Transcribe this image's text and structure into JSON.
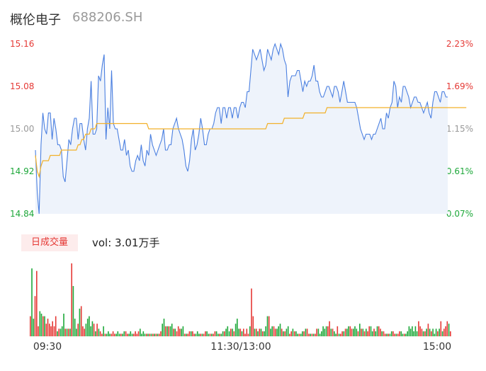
{
  "header": {
    "name": "概伦电子",
    "code": "688206.SH"
  },
  "volume_panel": {
    "tab_label": "日成交量",
    "vol_text": "vol: 3.01万手"
  },
  "colors": {
    "price": "#4a7fe0",
    "avg": "#f2b12a",
    "up": "#e53935",
    "down": "#1ea83a",
    "grid_text_neutral": "#999999"
  },
  "chart_data": [
    {
      "type": "line",
      "title": "",
      "y_ticks_left": [
        "15.16",
        "15.08",
        "15.00",
        "14.92",
        "14.84"
      ],
      "y_ticks_right": [
        "2.23%",
        "1.69%",
        "1.15%",
        "0.61%",
        "0.07%"
      ],
      "ylim": [
        14.84,
        15.16
      ],
      "x_labels": [
        "09:30",
        "11:30/13:00",
        "15:00"
      ],
      "series": [
        {
          "values": [
            14.96,
            14.88,
            14.84,
            14.97,
            15.03,
            15.0,
            14.99,
            15.03,
            15.03,
            14.98,
            15.02,
            15.0,
            14.97,
            14.97,
            14.96,
            14.91,
            14.9,
            14.94,
            14.98,
            14.97,
            15.0,
            15.02,
            15.02,
            14.98,
            15.01,
            15.01,
            14.98,
            14.96,
            15.0,
            15.02,
            15.09,
            14.99,
            14.99,
            15.0,
            15.1,
            15.09,
            15.12,
            15.14,
            14.98,
            15.04,
            15.0,
            15.11,
            15.01,
            15.0,
            15.0,
            14.98,
            14.96,
            14.96,
            14.98,
            14.95,
            14.96,
            14.93,
            14.92,
            14.92,
            14.94,
            14.95,
            14.94,
            14.97,
            14.94,
            14.93,
            14.96,
            14.95,
            14.99,
            14.97,
            14.96,
            14.95,
            14.96,
            14.97,
            14.98,
            15.0,
            14.96,
            14.96,
            14.97,
            14.97,
            15.0,
            15.01,
            15.02,
            15.0,
            14.99,
            14.98,
            14.96,
            14.93,
            14.92,
            14.94,
            14.98,
            15.0,
            14.96,
            14.97,
            14.99,
            15.02,
            15.0,
            14.97,
            14.97,
            14.99,
            15.0,
            15.0,
            15.01,
            15.03,
            15.04,
            15.04,
            15.01,
            15.04,
            15.04,
            15.02,
            15.04,
            15.04,
            15.02,
            15.04,
            15.04,
            15.02,
            15.04,
            15.05,
            15.05,
            15.04,
            15.07,
            15.07,
            15.11,
            15.15,
            15.14,
            15.13,
            15.14,
            15.15,
            15.13,
            15.11,
            15.12,
            15.15,
            15.14,
            15.13,
            15.15,
            15.16,
            15.15,
            15.14,
            15.16,
            15.15,
            15.13,
            15.12,
            15.06,
            15.09,
            15.1,
            15.1,
            15.1,
            15.11,
            15.11,
            15.09,
            15.07,
            15.09,
            15.08,
            15.09,
            15.09,
            15.1,
            15.12,
            15.09,
            15.09,
            15.07,
            15.06,
            15.06,
            15.07,
            15.08,
            15.08,
            15.07,
            15.06,
            15.08,
            15.08,
            15.07,
            15.05,
            15.07,
            15.09,
            15.07,
            15.05,
            15.05,
            15.05,
            15.05,
            15.05,
            15.04,
            15.02,
            15.0,
            14.99,
            14.98,
            14.99,
            14.99,
            14.99,
            14.98,
            14.99,
            14.99,
            15.0,
            15.01,
            15.02,
            15.0,
            15.0,
            15.03,
            15.02,
            15.04,
            15.05,
            15.09,
            15.08,
            15.04,
            15.06,
            15.05,
            15.08,
            15.08,
            15.07,
            15.06,
            15.04,
            15.05,
            15.06,
            15.06,
            15.05,
            15.05,
            15.04,
            15.03,
            15.04,
            15.05,
            15.03,
            15.02,
            15.05,
            15.07,
            15.07,
            15.06,
            15.05,
            15.07,
            15.07,
            15.06,
            15.06
          ]
        },
        {
          "values": [
            14.95,
            14.92,
            14.91,
            14.93,
            14.94,
            14.94,
            14.94,
            14.94,
            14.95,
            14.95,
            14.95,
            14.95,
            14.95,
            14.95,
            14.96,
            14.96,
            14.96,
            14.96,
            14.96,
            14.96,
            14.96,
            14.96,
            14.96,
            14.97,
            14.97,
            14.98,
            14.98,
            14.99,
            14.99,
            14.99,
            15.0,
            15.0,
            15.0,
            15.01,
            15.01,
            15.01,
            15.01,
            15.01,
            15.01,
            15.01,
            15.01,
            15.01,
            15.01,
            15.01,
            15.01,
            15.01,
            15.01,
            15.01,
            15.01,
            15.01,
            15.01,
            15.01,
            15.01,
            15.01,
            15.01,
            15.01,
            15.01,
            15.01,
            15.01,
            15.01,
            15.01,
            15.0,
            15.0,
            15.0,
            15.0,
            15.0,
            15.0,
            15.0,
            15.0,
            15.0,
            15.0,
            15.0,
            15.0,
            15.0,
            15.0,
            15.0,
            15.0,
            15.0,
            15.0,
            15.0,
            15.0,
            15.0,
            15.0,
            15.0,
            15.0,
            15.0,
            15.0,
            15.0,
            15.0,
            15.0,
            15.0,
            15.0,
            15.0,
            15.0,
            15.0,
            15.0,
            15.0,
            15.0,
            15.0,
            15.0,
            15.0,
            15.0,
            15.0,
            15.0,
            15.0,
            15.0,
            15.0,
            15.0,
            15.0,
            15.0,
            15.0,
            15.0,
            15.0,
            15.0,
            15.0,
            15.0,
            15.0,
            15.0,
            15.0,
            15.0,
            15.0,
            15.0,
            15.0,
            15.0,
            15.0,
            15.01,
            15.01,
            15.01,
            15.01,
            15.01,
            15.01,
            15.01,
            15.01,
            15.01,
            15.02,
            15.02,
            15.02,
            15.02,
            15.02,
            15.02,
            15.02,
            15.02,
            15.02,
            15.02,
            15.02,
            15.03,
            15.03,
            15.03,
            15.03,
            15.03,
            15.03,
            15.03,
            15.03,
            15.03,
            15.03,
            15.03,
            15.03,
            15.04,
            15.04,
            15.04,
            15.04,
            15.04,
            15.04,
            15.04,
            15.04,
            15.04,
            15.04,
            15.04,
            15.04,
            15.04,
            15.04,
            15.04,
            15.04,
            15.04,
            15.04,
            15.04,
            15.04,
            15.04,
            15.04,
            15.04,
            15.04,
            15.04,
            15.04,
            15.04,
            15.04,
            15.04,
            15.04,
            15.04,
            15.04,
            15.04,
            15.04,
            15.04,
            15.04,
            15.04,
            15.04,
            15.04,
            15.04,
            15.04,
            15.04,
            15.04,
            15.04,
            15.04,
            15.04,
            15.04,
            15.04,
            15.04,
            15.04,
            15.04,
            15.04,
            15.04,
            15.04,
            15.04,
            15.04,
            15.04,
            15.04,
            15.04,
            15.04,
            15.04,
            15.04,
            15.04,
            15.04,
            15.04,
            15.04,
            15.04,
            15.04,
            15.04,
            15.04,
            15.04,
            15.04,
            15.04,
            15.04,
            15.04,
            15.04
          ]
        }
      ]
    },
    {
      "type": "bar",
      "title": "",
      "values": [
        8,
        27,
        7,
        16,
        26,
        4,
        10,
        9,
        8,
        8,
        5,
        7,
        5,
        4,
        6,
        4,
        8,
        2,
        3,
        3,
        4,
        9,
        3,
        3,
        3,
        3,
        29,
        20,
        7,
        3,
        5,
        11,
        12,
        4,
        3,
        5,
        7,
        8,
        4,
        6,
        5,
        2,
        5,
        3,
        2,
        1,
        4,
        1,
        1,
        2,
        1,
        1,
        2,
        1,
        1,
        2,
        1,
        1,
        1,
        2,
        2,
        1,
        1,
        2,
        1,
        1,
        2,
        1,
        2,
        3,
        1,
        2,
        1,
        1,
        1,
        1,
        1,
        1,
        1,
        1,
        1,
        1,
        2,
        5,
        7,
        4,
        4,
        4,
        4,
        5,
        3,
        3,
        2,
        4,
        3,
        3,
        4,
        1,
        1,
        1,
        2,
        2,
        2,
        1,
        1,
        2,
        1,
        1,
        1,
        1,
        2,
        2,
        1,
        1,
        1,
        1,
        2,
        2,
        1,
        1,
        1,
        2,
        2,
        3,
        4,
        2,
        3,
        3,
        2,
        5,
        7,
        3,
        3,
        2,
        3,
        1,
        3,
        1,
        4,
        19,
        8,
        3,
        3,
        2,
        3,
        3,
        2,
        2,
        4,
        8,
        8,
        3,
        4,
        4,
        3,
        3,
        4,
        5,
        3,
        2,
        2,
        3,
        4,
        1,
        2,
        3,
        2,
        2,
        1,
        1,
        1,
        2,
        2,
        3,
        3,
        1,
        1,
        1,
        1,
        1,
        3,
        3,
        1,
        2,
        4,
        3,
        4,
        4,
        6,
        3,
        3,
        2,
        1,
        4,
        1,
        1,
        2,
        2,
        3,
        3,
        4,
        4,
        3,
        3,
        4,
        3,
        2,
        5,
        3,
        3,
        2,
        3,
        2,
        4,
        4,
        2,
        3,
        2,
        4,
        4,
        3,
        2,
        2,
        1,
        1,
        1,
        1,
        2,
        2,
        1,
        1,
        1,
        2,
        2,
        1,
        1,
        1,
        2,
        4,
        3,
        4,
        2,
        4,
        2,
        6,
        4,
        3,
        2,
        2,
        3,
        5,
        3,
        2,
        3,
        1,
        3,
        2,
        3,
        6,
        2,
        3,
        4,
        6,
        5,
        2
      ],
      "colors_seq": "mixed"
    }
  ]
}
